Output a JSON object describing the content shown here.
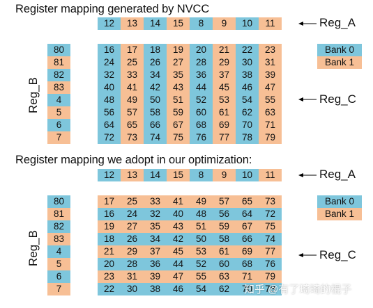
{
  "top": {
    "title": "Register mapping generated by NVCC",
    "reg_a": [
      "12",
      "13",
      "14",
      "15",
      "8",
      "9",
      "10",
      "11"
    ],
    "reg_b": [
      "80",
      "81",
      "82",
      "83",
      "4",
      "5",
      "6",
      "7"
    ],
    "reg_c": [
      [
        "16",
        "17",
        "18",
        "19",
        "20",
        "21",
        "22",
        "23"
      ],
      [
        "24",
        "25",
        "26",
        "27",
        "28",
        "29",
        "30",
        "31"
      ],
      [
        "32",
        "33",
        "34",
        "35",
        "36",
        "37",
        "38",
        "39"
      ],
      [
        "40",
        "41",
        "42",
        "43",
        "44",
        "45",
        "46",
        "47"
      ],
      [
        "48",
        "49",
        "50",
        "51",
        "52",
        "53",
        "54",
        "55"
      ],
      [
        "56",
        "57",
        "58",
        "59",
        "60",
        "61",
        "62",
        "63"
      ],
      [
        "64",
        "65",
        "66",
        "67",
        "68",
        "69",
        "70",
        "71"
      ],
      [
        "72",
        "73",
        "74",
        "75",
        "76",
        "77",
        "78",
        "79"
      ]
    ]
  },
  "bottom": {
    "title": "Register mapping we adopt in our optimization:",
    "reg_a": [
      "12",
      "13",
      "14",
      "15",
      "8",
      "9",
      "10",
      "11"
    ],
    "reg_b": [
      "80",
      "81",
      "82",
      "83",
      "4",
      "5",
      "6",
      "7"
    ],
    "reg_c": [
      [
        "17",
        "25",
        "33",
        "41",
        "49",
        "57",
        "65",
        "73"
      ],
      [
        "16",
        "24",
        "32",
        "40",
        "48",
        "56",
        "64",
        "72"
      ],
      [
        "19",
        "27",
        "35",
        "43",
        "51",
        "59",
        "67",
        "75"
      ],
      [
        "18",
        "26",
        "34",
        "42",
        "50",
        "58",
        "66",
        "74"
      ],
      [
        "21",
        "29",
        "37",
        "45",
        "53",
        "61",
        "69",
        "77"
      ],
      [
        "20",
        "28",
        "36",
        "44",
        "52",
        "60",
        "68",
        "76"
      ],
      [
        "23",
        "31",
        "39",
        "47",
        "55",
        "63",
        "71",
        "79"
      ],
      [
        "22",
        "30",
        "38",
        "46",
        "54",
        "62",
        "70",
        "78"
      ]
    ]
  },
  "labels": {
    "reg_a": "Reg_A",
    "reg_b": "Reg_B",
    "reg_c": "Reg_C",
    "bank0": "Bank 0",
    "bank1": "Bank 1"
  },
  "colors": {
    "bank0": "#7ec6dc",
    "bank1": "#f7bf95"
  },
  "watermark": "知乎 @有了琦琦的棍子"
}
